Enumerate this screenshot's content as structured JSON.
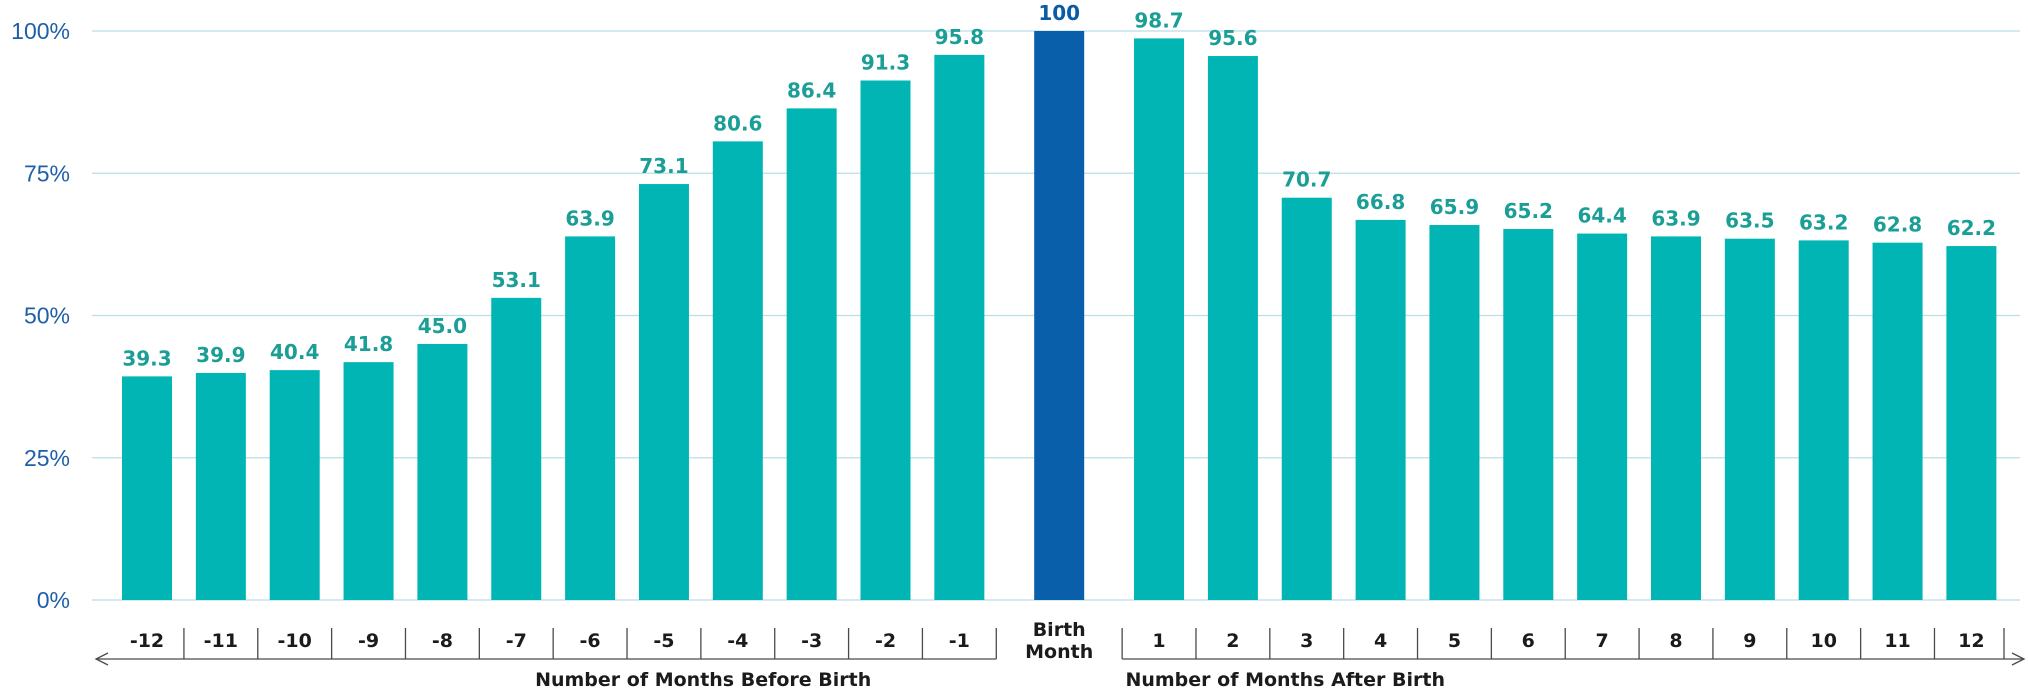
{
  "colors": {
    "bar": "#00b5b3",
    "highlight": "#0a5fab",
    "value_label": "#1a9e96",
    "highlight_label": "#0b5aa7",
    "ytick": "#1f5fa8",
    "grid": "#b9dfe6",
    "axis": "#4a4a4a",
    "text": "#1b1b1b"
  },
  "chart_data": {
    "type": "bar",
    "title": "",
    "xlabel": "",
    "ylabel": "",
    "ylim": [
      0,
      100
    ],
    "yticks": [
      {
        "value": 0,
        "label": "0%"
      },
      {
        "value": 25,
        "label": "25%"
      },
      {
        "value": 50,
        "label": "50%"
      },
      {
        "value": 75,
        "label": "75%"
      },
      {
        "value": 100,
        "label": "100%"
      }
    ],
    "grid": true,
    "categories": [
      "-12",
      "-11",
      "-10",
      "-9",
      "-8",
      "-7",
      "-6",
      "-5",
      "-4",
      "-3",
      "-2",
      "-1",
      "Birth Month",
      "1",
      "2",
      "3",
      "4",
      "5",
      "6",
      "7",
      "8",
      "9",
      "10",
      "11",
      "12"
    ],
    "category_lines": [
      [
        "-12"
      ],
      [
        "-11"
      ],
      [
        "-10"
      ],
      [
        "-9"
      ],
      [
        "-8"
      ],
      [
        "-7"
      ],
      [
        "-6"
      ],
      [
        "-5"
      ],
      [
        "-4"
      ],
      [
        "-3"
      ],
      [
        "-2"
      ],
      [
        "-1"
      ],
      [
        "Birth",
        "Month"
      ],
      [
        "1"
      ],
      [
        "2"
      ],
      [
        "3"
      ],
      [
        "4"
      ],
      [
        "5"
      ],
      [
        "6"
      ],
      [
        "7"
      ],
      [
        "8"
      ],
      [
        "9"
      ],
      [
        "10"
      ],
      [
        "11"
      ],
      [
        "12"
      ]
    ],
    "values": [
      39.3,
      39.9,
      40.4,
      41.8,
      45.0,
      53.1,
      63.9,
      73.1,
      80.6,
      86.4,
      91.3,
      95.8,
      100,
      98.7,
      95.6,
      70.7,
      66.8,
      65.9,
      65.2,
      64.4,
      63.9,
      63.5,
      63.2,
      62.8,
      62.2
    ],
    "value_labels": [
      "39.3",
      "39.9",
      "40.4",
      "41.8",
      "45.0",
      "53.1",
      "63.9",
      "73.1",
      "80.6",
      "86.4",
      "91.3",
      "95.8",
      "100",
      "98.7",
      "95.6",
      "70.7",
      "66.8",
      "65.9",
      "65.2",
      "64.4",
      "63.9",
      "63.5",
      "63.2",
      "62.8",
      "62.2"
    ],
    "highlight_index": 12,
    "group_labels": {
      "before": "Number of Months Before Birth",
      "after": "Number of Months After Birth"
    }
  }
}
